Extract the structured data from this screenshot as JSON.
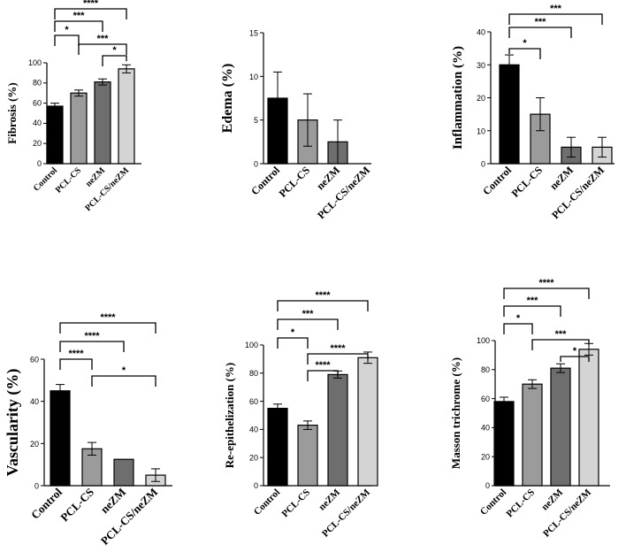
{
  "figure_title": "",
  "chart_data": [
    {
      "id": "fibrosis",
      "type": "bar",
      "ylabel": "Fibrosis (%)",
      "categories": [
        "Control",
        "PCL-CS",
        "neZM",
        "PCL-CS/neZM"
      ],
      "values": [
        57,
        70,
        81,
        94
      ],
      "errors": [
        3,
        3,
        3,
        4
      ],
      "ylim": [
        0,
        100
      ],
      "yticks": [
        0,
        20,
        40,
        60,
        80,
        100
      ],
      "significance": [
        {
          "from": 0,
          "to": 1,
          "label": "*"
        },
        {
          "from": 0,
          "to": 2,
          "label": "***"
        },
        {
          "from": 0,
          "to": 3,
          "label": "****"
        },
        {
          "from": 1,
          "to": 3,
          "label": "***"
        },
        {
          "from": 2,
          "to": 3,
          "label": "*"
        }
      ]
    },
    {
      "id": "edema",
      "type": "bar",
      "ylabel": "Edema (%)",
      "categories": [
        "Control",
        "PCL-CS",
        "neZM",
        "PCL-CS/neZM"
      ],
      "values": [
        7.5,
        5,
        2.5,
        0
      ],
      "errors": [
        3,
        3,
        2.5,
        0
      ],
      "ylim": [
        0,
        15
      ],
      "yticks": [
        0,
        5,
        10,
        15
      ],
      "significance": []
    },
    {
      "id": "inflammation",
      "type": "bar",
      "ylabel": "Inflammation (%)",
      "categories": [
        "Control",
        "PCL-CS",
        "neZM",
        "PCL-CS/neZM"
      ],
      "values": [
        30,
        15,
        5,
        5
      ],
      "errors": [
        3,
        5,
        3,
        3
      ],
      "ylim": [
        0,
        40
      ],
      "yticks": [
        0,
        10,
        20,
        30,
        40
      ],
      "significance": [
        {
          "from": 0,
          "to": 1,
          "label": "*"
        },
        {
          "from": 0,
          "to": 2,
          "label": "***"
        },
        {
          "from": 0,
          "to": 3,
          "label": "***"
        }
      ]
    },
    {
      "id": "vascularity",
      "type": "bar",
      "ylabel": "Vascularity (%)",
      "categories": [
        "Control",
        "PCL-CS",
        "neZM",
        "PCL-CS/neZM"
      ],
      "values": [
        45,
        17.5,
        12.5,
        5
      ],
      "errors": [
        3,
        3,
        0,
        3
      ],
      "ylim": [
        0,
        60
      ],
      "yticks": [
        0,
        20,
        40,
        60
      ],
      "significance": [
        {
          "from": 0,
          "to": 1,
          "label": "****"
        },
        {
          "from": 0,
          "to": 2,
          "label": "****"
        },
        {
          "from": 0,
          "to": 3,
          "label": "****"
        },
        {
          "from": 1,
          "to": 3,
          "label": "*"
        }
      ]
    },
    {
      "id": "reepithelization",
      "type": "bar",
      "ylabel": "Re-epithelization (%)",
      "categories": [
        "Control",
        "PCL-CS",
        "neZM",
        "PCL-CS/neZM"
      ],
      "values": [
        55,
        43,
        79,
        91
      ],
      "errors": [
        3,
        3,
        2.5,
        4
      ],
      "ylim": [
        0,
        100
      ],
      "yticks": [
        0,
        20,
        40,
        60,
        80,
        100
      ],
      "significance": [
        {
          "from": 0,
          "to": 1,
          "label": "*"
        },
        {
          "from": 0,
          "to": 2,
          "label": "***"
        },
        {
          "from": 0,
          "to": 3,
          "label": "****"
        },
        {
          "from": 1,
          "to": 2,
          "label": "****"
        },
        {
          "from": 1,
          "to": 3,
          "label": "****"
        }
      ]
    },
    {
      "id": "masson",
      "type": "bar",
      "ylabel": "Masson trichrome (%)",
      "categories": [
        "Control",
        "PCL-CS",
        "neZM",
        "PCL-CS/neZM"
      ],
      "values": [
        58,
        70,
        81,
        94
      ],
      "errors": [
        3,
        3,
        3,
        4
      ],
      "ylim": [
        0,
        100
      ],
      "yticks": [
        0,
        20,
        40,
        60,
        80,
        100
      ],
      "significance": [
        {
          "from": 0,
          "to": 1,
          "label": "*"
        },
        {
          "from": 0,
          "to": 2,
          "label": "***"
        },
        {
          "from": 0,
          "to": 3,
          "label": "****"
        },
        {
          "from": 1,
          "to": 3,
          "label": "***"
        },
        {
          "from": 2,
          "to": 3,
          "label": "*"
        }
      ]
    }
  ],
  "colors": {
    "bars": [
      "#000000",
      "#9b9b9b",
      "#6e6e6e",
      "#d4d4d4"
    ],
    "axis": "#000000"
  }
}
